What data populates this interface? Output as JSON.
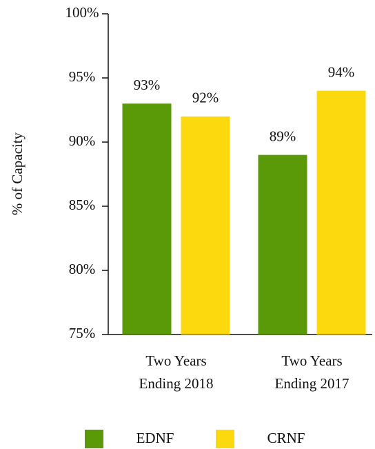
{
  "chart_data": {
    "type": "bar",
    "y_label": "% of Capacity",
    "categories": [
      "Two Years Ending 2018",
      "Two Years Ending 2017"
    ],
    "series": [
      {
        "name": "EDNF",
        "color": "#5a9a08",
        "values": [
          93,
          89
        ],
        "value_labels": [
          "93%",
          "89%"
        ]
      },
      {
        "name": "CRNF",
        "color": "#fcd80f",
        "values": [
          92,
          94
        ],
        "value_labels": [
          "92%",
          "94%"
        ]
      }
    ],
    "ylim": [
      75,
      100
    ],
    "yticks": [
      {
        "value": 75,
        "label": "75%"
      },
      {
        "value": 80,
        "label": "80%"
      },
      {
        "value": 85,
        "label": "85%"
      },
      {
        "value": 90,
        "label": "90%"
      },
      {
        "value": 95,
        "label": "95%"
      },
      {
        "value": 100,
        "label": "100%"
      }
    ],
    "grid": false
  }
}
